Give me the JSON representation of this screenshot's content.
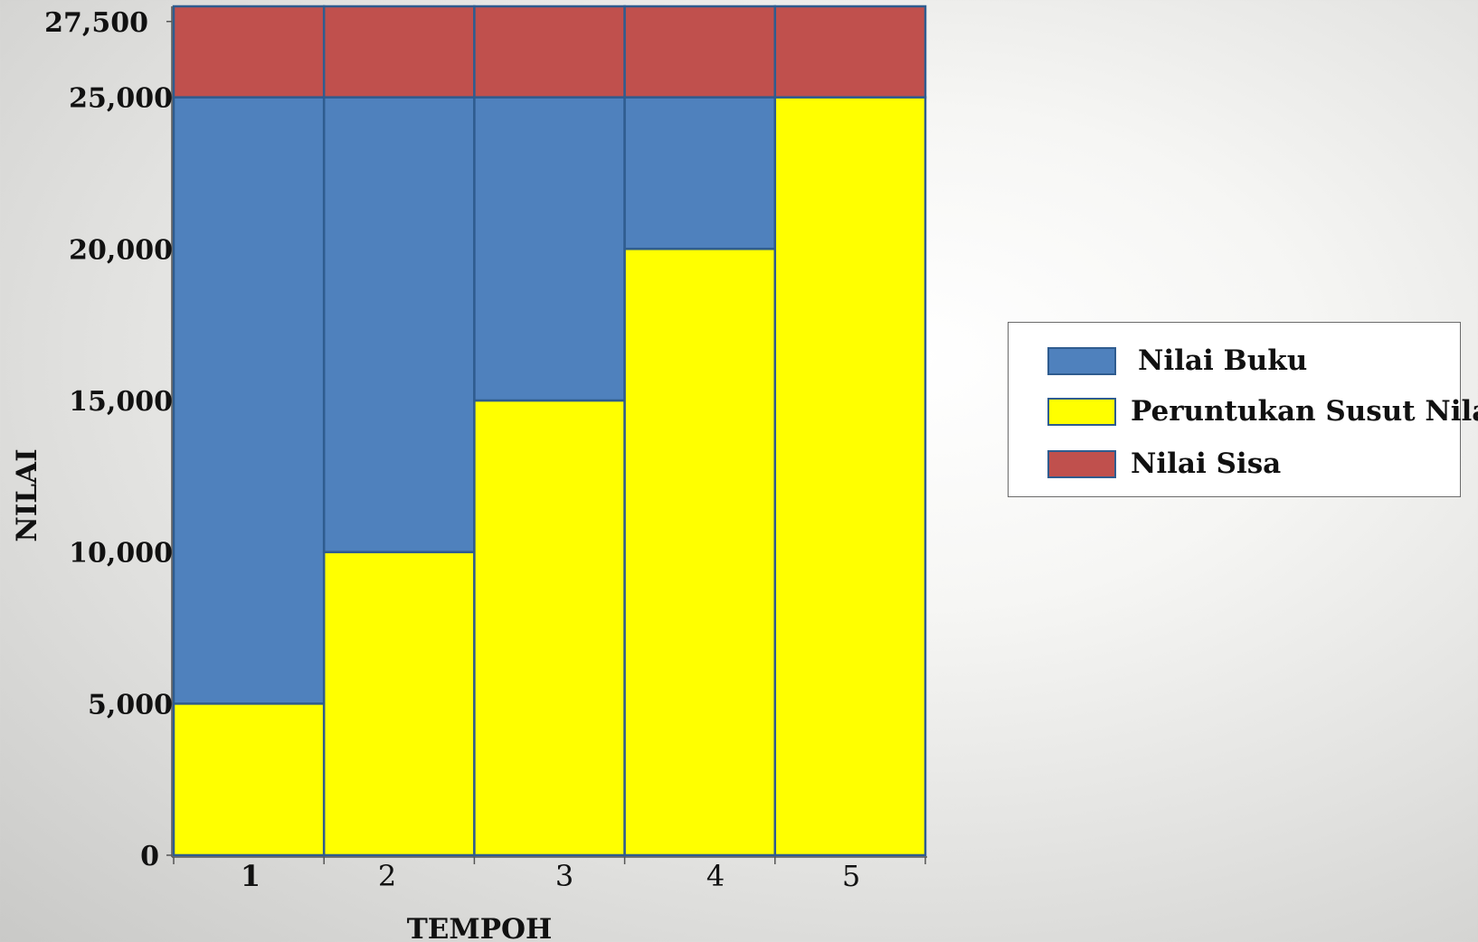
{
  "chart_data": {
    "type": "bar",
    "stacked": true,
    "xlabel": "TEMPOH",
    "ylabel": "NILAI",
    "categories": [
      "1",
      "2",
      "3",
      "4",
      "5"
    ],
    "yticks": [
      "0",
      "5,000",
      "10,000",
      "15,000",
      "20,000",
      "25,000",
      "27,500"
    ],
    "ytick_values": [
      0,
      5000,
      10000,
      15000,
      20000,
      25000,
      27500
    ],
    "ylim": [
      0,
      28000
    ],
    "grid": false,
    "legend_position": "right",
    "series": [
      {
        "name": "Peruntukan Susut Nilai",
        "color": "#ffff00",
        "values": [
          5000,
          10000,
          15000,
          20000,
          25000
        ]
      },
      {
        "name": "Nilai Buku",
        "color": "#4f81bd",
        "values": [
          20000,
          15000,
          10000,
          5000,
          0
        ]
      },
      {
        "name": "Nilai Sisa",
        "color": "#c0504d",
        "values": [
          3000,
          3000,
          3000,
          3000,
          3000
        ]
      }
    ]
  },
  "legend": {
    "items": [
      {
        "label": "Nilai Buku",
        "color": "#4f81bd"
      },
      {
        "label": "Peruntukan Susut Nilai",
        "color": "#ffff00"
      },
      {
        "label": "Nilai Sisa",
        "color": "#c0504d"
      }
    ]
  },
  "colors": {
    "bar_border": "#2f5c8f",
    "axis": "#555555"
  }
}
